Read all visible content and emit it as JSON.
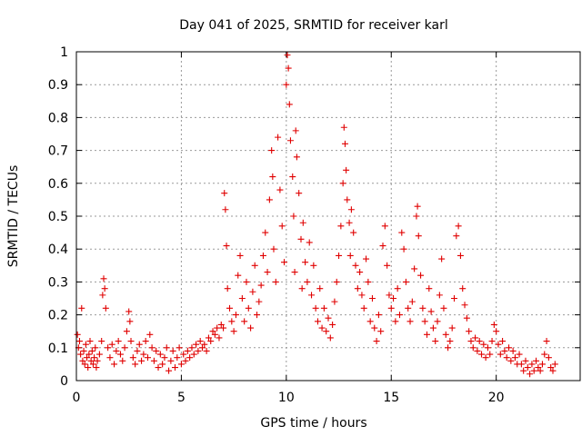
{
  "chart_data": {
    "type": "scatter",
    "title": "Day 041 of 2025, SRMTID for receiver karl",
    "xlabel": "GPS time / hours",
    "ylabel": "SRMTID / TECUs",
    "xlim": [
      0,
      24
    ],
    "ylim": [
      0,
      1
    ],
    "xticks": [
      "0",
      "5",
      "10",
      "15",
      "20"
    ],
    "yticks": [
      "0",
      "0.1",
      "0.2",
      "0.3",
      "0.4",
      "0.5",
      "0.6",
      "0.7",
      "0.8",
      "0.9",
      "1"
    ],
    "grid": true,
    "marker": "+",
    "color": "#e00000",
    "series": [
      {
        "name": "SRMTID",
        "points": [
          [
            0.05,
            0.14
          ],
          [
            0.1,
            0.1
          ],
          [
            0.15,
            0.12
          ],
          [
            0.2,
            0.08
          ],
          [
            0.25,
            0.22
          ],
          [
            0.3,
            0.06
          ],
          [
            0.35,
            0.09
          ],
          [
            0.4,
            0.05
          ],
          [
            0.45,
            0.11
          ],
          [
            0.5,
            0.07
          ],
          [
            0.55,
            0.04
          ],
          [
            0.6,
            0.08
          ],
          [
            0.65,
            0.12
          ],
          [
            0.7,
            0.06
          ],
          [
            0.75,
            0.09
          ],
          [
            0.8,
            0.05
          ],
          [
            0.85,
            0.07
          ],
          [
            0.9,
            0.1
          ],
          [
            0.95,
            0.04
          ],
          [
            1.0,
            0.06
          ],
          [
            1.1,
            0.08
          ],
          [
            1.2,
            0.12
          ],
          [
            1.25,
            0.26
          ],
          [
            1.3,
            0.31
          ],
          [
            1.35,
            0.28
          ],
          [
            1.4,
            0.22
          ],
          [
            1.5,
            0.1
          ],
          [
            1.6,
            0.07
          ],
          [
            1.7,
            0.11
          ],
          [
            1.8,
            0.05
          ],
          [
            1.9,
            0.09
          ],
          [
            2.0,
            0.12
          ],
          [
            2.1,
            0.08
          ],
          [
            2.2,
            0.06
          ],
          [
            2.3,
            0.1
          ],
          [
            2.4,
            0.15
          ],
          [
            2.5,
            0.21
          ],
          [
            2.55,
            0.18
          ],
          [
            2.6,
            0.12
          ],
          [
            2.7,
            0.07
          ],
          [
            2.8,
            0.05
          ],
          [
            2.9,
            0.09
          ],
          [
            3.0,
            0.11
          ],
          [
            3.1,
            0.06
          ],
          [
            3.2,
            0.08
          ],
          [
            3.3,
            0.12
          ],
          [
            3.4,
            0.07
          ],
          [
            3.5,
            0.14
          ],
          [
            3.6,
            0.1
          ],
          [
            3.7,
            0.06
          ],
          [
            3.8,
            0.09
          ],
          [
            3.9,
            0.04
          ],
          [
            4.0,
            0.08
          ],
          [
            4.1,
            0.05
          ],
          [
            4.2,
            0.07
          ],
          [
            4.3,
            0.1
          ],
          [
            4.4,
            0.03
          ],
          [
            4.5,
            0.06
          ],
          [
            4.6,
            0.09
          ],
          [
            4.7,
            0.04
          ],
          [
            4.8,
            0.07
          ],
          [
            4.9,
            0.1
          ],
          [
            5.0,
            0.05
          ],
          [
            5.1,
            0.08
          ],
          [
            5.2,
            0.06
          ],
          [
            5.3,
            0.09
          ],
          [
            5.4,
            0.07
          ],
          [
            5.5,
            0.1
          ],
          [
            5.6,
            0.08
          ],
          [
            5.7,
            0.11
          ],
          [
            5.8,
            0.09
          ],
          [
            5.9,
            0.12
          ],
          [
            6.0,
            0.1
          ],
          [
            6.1,
            0.11
          ],
          [
            6.2,
            0.09
          ],
          [
            6.3,
            0.13
          ],
          [
            6.4,
            0.12
          ],
          [
            6.5,
            0.15
          ],
          [
            6.6,
            0.14
          ],
          [
            6.7,
            0.16
          ],
          [
            6.8,
            0.13
          ],
          [
            6.9,
            0.17
          ],
          [
            7.0,
            0.16
          ],
          [
            7.05,
            0.57
          ],
          [
            7.1,
            0.52
          ],
          [
            7.15,
            0.41
          ],
          [
            7.2,
            0.28
          ],
          [
            7.3,
            0.22
          ],
          [
            7.4,
            0.18
          ],
          [
            7.5,
            0.15
          ],
          [
            7.6,
            0.2
          ],
          [
            7.7,
            0.32
          ],
          [
            7.8,
            0.38
          ],
          [
            7.9,
            0.25
          ],
          [
            8.0,
            0.18
          ],
          [
            8.1,
            0.3
          ],
          [
            8.2,
            0.22
          ],
          [
            8.3,
            0.16
          ],
          [
            8.4,
            0.27
          ],
          [
            8.5,
            0.35
          ],
          [
            8.6,
            0.2
          ],
          [
            8.7,
            0.24
          ],
          [
            8.8,
            0.29
          ],
          [
            8.9,
            0.38
          ],
          [
            9.0,
            0.45
          ],
          [
            9.1,
            0.33
          ],
          [
            9.2,
            0.55
          ],
          [
            9.3,
            0.7
          ],
          [
            9.35,
            0.62
          ],
          [
            9.4,
            0.4
          ],
          [
            9.5,
            0.3
          ],
          [
            9.6,
            0.74
          ],
          [
            9.7,
            0.58
          ],
          [
            9.8,
            0.47
          ],
          [
            9.9,
            0.36
          ],
          [
            10.0,
            0.9
          ],
          [
            10.05,
            0.99
          ],
          [
            10.1,
            0.95
          ],
          [
            10.15,
            0.84
          ],
          [
            10.2,
            0.73
          ],
          [
            10.3,
            0.62
          ],
          [
            10.35,
            0.5
          ],
          [
            10.4,
            0.33
          ],
          [
            10.45,
            0.76
          ],
          [
            10.5,
            0.68
          ],
          [
            10.6,
            0.57
          ],
          [
            10.7,
            0.43
          ],
          [
            10.75,
            0.28
          ],
          [
            10.8,
            0.48
          ],
          [
            10.9,
            0.36
          ],
          [
            11.0,
            0.3
          ],
          [
            11.1,
            0.42
          ],
          [
            11.2,
            0.26
          ],
          [
            11.3,
            0.35
          ],
          [
            11.4,
            0.22
          ],
          [
            11.5,
            0.18
          ],
          [
            11.6,
            0.28
          ],
          [
            11.7,
            0.16
          ],
          [
            11.8,
            0.22
          ],
          [
            11.9,
            0.15
          ],
          [
            12.0,
            0.19
          ],
          [
            12.1,
            0.13
          ],
          [
            12.2,
            0.17
          ],
          [
            12.3,
            0.24
          ],
          [
            12.4,
            0.3
          ],
          [
            12.5,
            0.38
          ],
          [
            12.6,
            0.47
          ],
          [
            12.7,
            0.6
          ],
          [
            12.75,
            0.77
          ],
          [
            12.8,
            0.72
          ],
          [
            12.85,
            0.64
          ],
          [
            12.9,
            0.55
          ],
          [
            13.0,
            0.48
          ],
          [
            13.05,
            0.38
          ],
          [
            13.1,
            0.52
          ],
          [
            13.2,
            0.45
          ],
          [
            13.3,
            0.35
          ],
          [
            13.4,
            0.28
          ],
          [
            13.5,
            0.33
          ],
          [
            13.6,
            0.26
          ],
          [
            13.7,
            0.22
          ],
          [
            13.8,
            0.37
          ],
          [
            13.9,
            0.3
          ],
          [
            14.0,
            0.18
          ],
          [
            14.1,
            0.25
          ],
          [
            14.2,
            0.16
          ],
          [
            14.3,
            0.12
          ],
          [
            14.4,
            0.2
          ],
          [
            14.5,
            0.15
          ],
          [
            14.6,
            0.41
          ],
          [
            14.7,
            0.47
          ],
          [
            14.8,
            0.35
          ],
          [
            14.9,
            0.26
          ],
          [
            15.0,
            0.22
          ],
          [
            15.1,
            0.25
          ],
          [
            15.2,
            0.18
          ],
          [
            15.3,
            0.28
          ],
          [
            15.4,
            0.2
          ],
          [
            15.5,
            0.45
          ],
          [
            15.6,
            0.4
          ],
          [
            15.7,
            0.3
          ],
          [
            15.8,
            0.22
          ],
          [
            15.9,
            0.18
          ],
          [
            16.0,
            0.24
          ],
          [
            16.1,
            0.34
          ],
          [
            16.2,
            0.5
          ],
          [
            16.25,
            0.53
          ],
          [
            16.3,
            0.44
          ],
          [
            16.4,
            0.32
          ],
          [
            16.5,
            0.22
          ],
          [
            16.6,
            0.18
          ],
          [
            16.7,
            0.14
          ],
          [
            16.8,
            0.28
          ],
          [
            16.9,
            0.21
          ],
          [
            17.0,
            0.16
          ],
          [
            17.1,
            0.12
          ],
          [
            17.2,
            0.18
          ],
          [
            17.3,
            0.26
          ],
          [
            17.4,
            0.37
          ],
          [
            17.5,
            0.22
          ],
          [
            17.6,
            0.14
          ],
          [
            17.7,
            0.1
          ],
          [
            17.8,
            0.12
          ],
          [
            17.9,
            0.16
          ],
          [
            18.0,
            0.25
          ],
          [
            18.1,
            0.44
          ],
          [
            18.2,
            0.47
          ],
          [
            18.3,
            0.38
          ],
          [
            18.4,
            0.28
          ],
          [
            18.5,
            0.23
          ],
          [
            18.6,
            0.19
          ],
          [
            18.7,
            0.15
          ],
          [
            18.8,
            0.12
          ],
          [
            18.9,
            0.1
          ],
          [
            19.0,
            0.13
          ],
          [
            19.1,
            0.09
          ],
          [
            19.2,
            0.12
          ],
          [
            19.3,
            0.08
          ],
          [
            19.4,
            0.11
          ],
          [
            19.5,
            0.07
          ],
          [
            19.6,
            0.1
          ],
          [
            19.7,
            0.08
          ],
          [
            19.8,
            0.12
          ],
          [
            19.9,
            0.17
          ],
          [
            20.0,
            0.15
          ],
          [
            20.1,
            0.11
          ],
          [
            20.2,
            0.08
          ],
          [
            20.3,
            0.12
          ],
          [
            20.4,
            0.09
          ],
          [
            20.5,
            0.07
          ],
          [
            20.6,
            0.1
          ],
          [
            20.7,
            0.06
          ],
          [
            20.8,
            0.09
          ],
          [
            20.9,
            0.07
          ],
          [
            21.0,
            0.05
          ],
          [
            21.1,
            0.08
          ],
          [
            21.2,
            0.05
          ],
          [
            21.3,
            0.03
          ],
          [
            21.4,
            0.06
          ],
          [
            21.5,
            0.04
          ],
          [
            21.6,
            0.02
          ],
          [
            21.7,
            0.05
          ],
          [
            21.8,
            0.03
          ],
          [
            21.9,
            0.06
          ],
          [
            22.0,
            0.04
          ],
          [
            22.1,
            0.03
          ],
          [
            22.2,
            0.05
          ],
          [
            22.3,
            0.08
          ],
          [
            22.4,
            0.12
          ],
          [
            22.5,
            0.07
          ],
          [
            22.6,
            0.04
          ],
          [
            22.7,
            0.03
          ],
          [
            22.8,
            0.05
          ]
        ]
      }
    ]
  }
}
